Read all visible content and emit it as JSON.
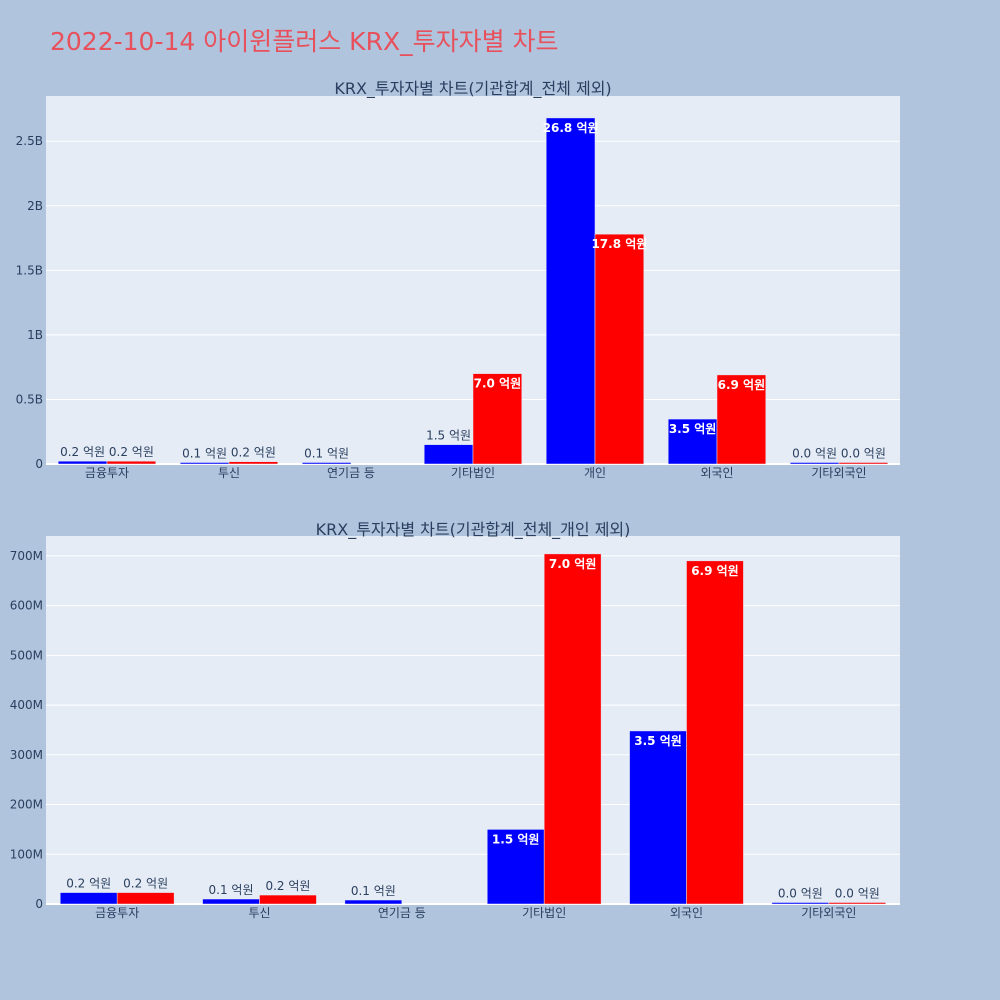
{
  "page_title": "2022-10-14 아이윈플러스 KRX_투자자별 차트",
  "colors": {
    "buy": "#0000ff",
    "sell": "#ff0000",
    "title": "#e8505b",
    "background": "#b0c4de",
    "plot_background": "#e5ecf6"
  },
  "chart_data": [
    {
      "type": "bar",
      "title": "KRX_투자자별 차트(기관합계_전체 제외)",
      "categories": [
        "금융투자",
        "투신",
        "연기금 등",
        "기타법인",
        "개인",
        "외국인",
        "기타외국인"
      ],
      "yticks": [
        "0",
        "0.5B",
        "1B",
        "1.5B",
        "2B",
        "2.5B"
      ],
      "ylim": [
        0,
        2850000000
      ],
      "series": [
        {
          "color": "#0000ff",
          "values": [
            22000000,
            9000000,
            8000000,
            150000000,
            2680000000,
            348000000,
            2000000
          ],
          "labels": [
            "0.2 억원",
            "0.1 억원",
            "0.1 억원",
            "1.5 억원",
            "26.8 억원",
            "3.5 억원",
            "0.0 억원"
          ]
        },
        {
          "color": "#ff0000",
          "values": [
            22000000,
            18000000,
            0,
            700000000,
            1780000000,
            690000000,
            1000000
          ],
          "labels": [
            "0.2 억원",
            "0.2 억원",
            "",
            "7.0 억원",
            "17.8 억원",
            "6.9 억원",
            "0.0 억원"
          ]
        }
      ]
    },
    {
      "type": "bar",
      "title": "KRX_투자자별 차트(기관합계_전체_개인 제외)",
      "categories": [
        "금융투자",
        "투신",
        "연기금 등",
        "기타법인",
        "외국인",
        "기타외국인"
      ],
      "yticks": [
        "0",
        "100M",
        "200M",
        "300M",
        "400M",
        "500M",
        "600M",
        "700M"
      ],
      "ylim": [
        0,
        740000000
      ],
      "series": [
        {
          "color": "#0000ff",
          "values": [
            23000000,
            10000000,
            8000000,
            150000000,
            348000000,
            2000000
          ],
          "labels": [
            "0.2 억원",
            "0.1 억원",
            "0.1 억원",
            "1.5 억원",
            "3.5 억원",
            "0.0 억원"
          ]
        },
        {
          "color": "#ff0000",
          "values": [
            23000000,
            18000000,
            0,
            704000000,
            690000000,
            1000000
          ],
          "labels": [
            "0.2 억원",
            "0.2 억원",
            "",
            "7.0 억원",
            "6.9 억원",
            "0.0 억원"
          ]
        }
      ]
    }
  ]
}
